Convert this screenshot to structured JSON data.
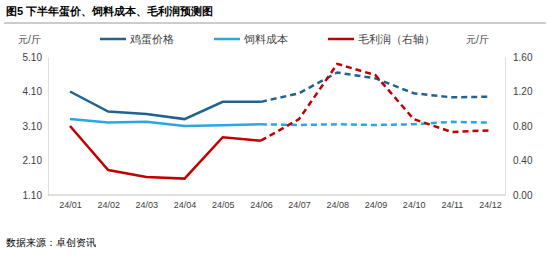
{
  "chart_data": {
    "type": "line",
    "title": "图5 下半年蛋价、饲料成本、毛利润预测图",
    "source": "数据来源：卓创资讯",
    "y_label": "元/斤",
    "y2_label": "元/斤",
    "categories": [
      "24/01",
      "24/02",
      "24/03",
      "24/04",
      "24/05",
      "24/06",
      "24/07",
      "24/08",
      "24/09",
      "24/10",
      "24/11",
      "24/12"
    ],
    "ylim": [
      1.1,
      5.1
    ],
    "yticks": [
      {
        "value": 1.1,
        "label": "1.10"
      },
      {
        "value": 2.1,
        "label": "2.10"
      },
      {
        "value": 3.1,
        "label": "3.10"
      },
      {
        "value": 4.1,
        "label": "4.10"
      },
      {
        "value": 5.1,
        "label": "5.10"
      }
    ],
    "y2lim": [
      0,
      1.6
    ],
    "y2ticks": [
      {
        "value": 0,
        "label": "0.00"
      },
      {
        "value": 0.4,
        "label": "0.40"
      },
      {
        "value": 0.8,
        "label": "0.80"
      },
      {
        "value": 1.2,
        "label": "1.20"
      },
      {
        "value": 1.6,
        "label": "1.60"
      }
    ],
    "grid": false,
    "legend": "top",
    "series": [
      {
        "name": "鸡蛋价格",
        "color": "#1f6391",
        "line_style": "solid",
        "values": [
          4.1,
          3.52,
          3.45,
          3.3,
          3.8,
          3.8,
          null,
          null,
          null,
          null,
          null,
          null
        ]
      },
      {
        "name": "鸡蛋价格",
        "color": "#1f6391",
        "line_style": "dashed",
        "values": [
          null,
          null,
          null,
          null,
          null,
          3.8,
          4.05,
          4.65,
          4.48,
          4.05,
          3.93,
          3.95
        ]
      },
      {
        "name": "饲料成本",
        "color": "#2aa7e0",
        "line_style": "solid",
        "values": [
          3.3,
          3.2,
          3.22,
          3.1,
          3.12,
          3.15,
          null,
          null,
          null,
          null,
          null,
          null
        ]
      },
      {
        "name": "饲料成本",
        "color": "#2aa7e0",
        "line_style": "dashed",
        "values": [
          null,
          null,
          null,
          null,
          null,
          3.15,
          3.13,
          3.15,
          3.13,
          3.15,
          3.22,
          3.2
        ]
      },
      {
        "name": "毛利润（右轴）",
        "color": "#c00000",
        "line_style": "solid",
        "axis": "y2",
        "values": [
          0.8,
          0.29,
          0.21,
          0.19,
          0.67,
          0.63,
          null,
          null,
          null,
          null,
          null,
          null
        ]
      },
      {
        "name": "毛利润（右轴）",
        "color": "#c00000",
        "line_style": "dashed",
        "axis": "y2",
        "values": [
          null,
          null,
          null,
          null,
          null,
          0.63,
          0.88,
          1.52,
          1.39,
          0.88,
          0.73,
          0.75
        ]
      }
    ]
  }
}
